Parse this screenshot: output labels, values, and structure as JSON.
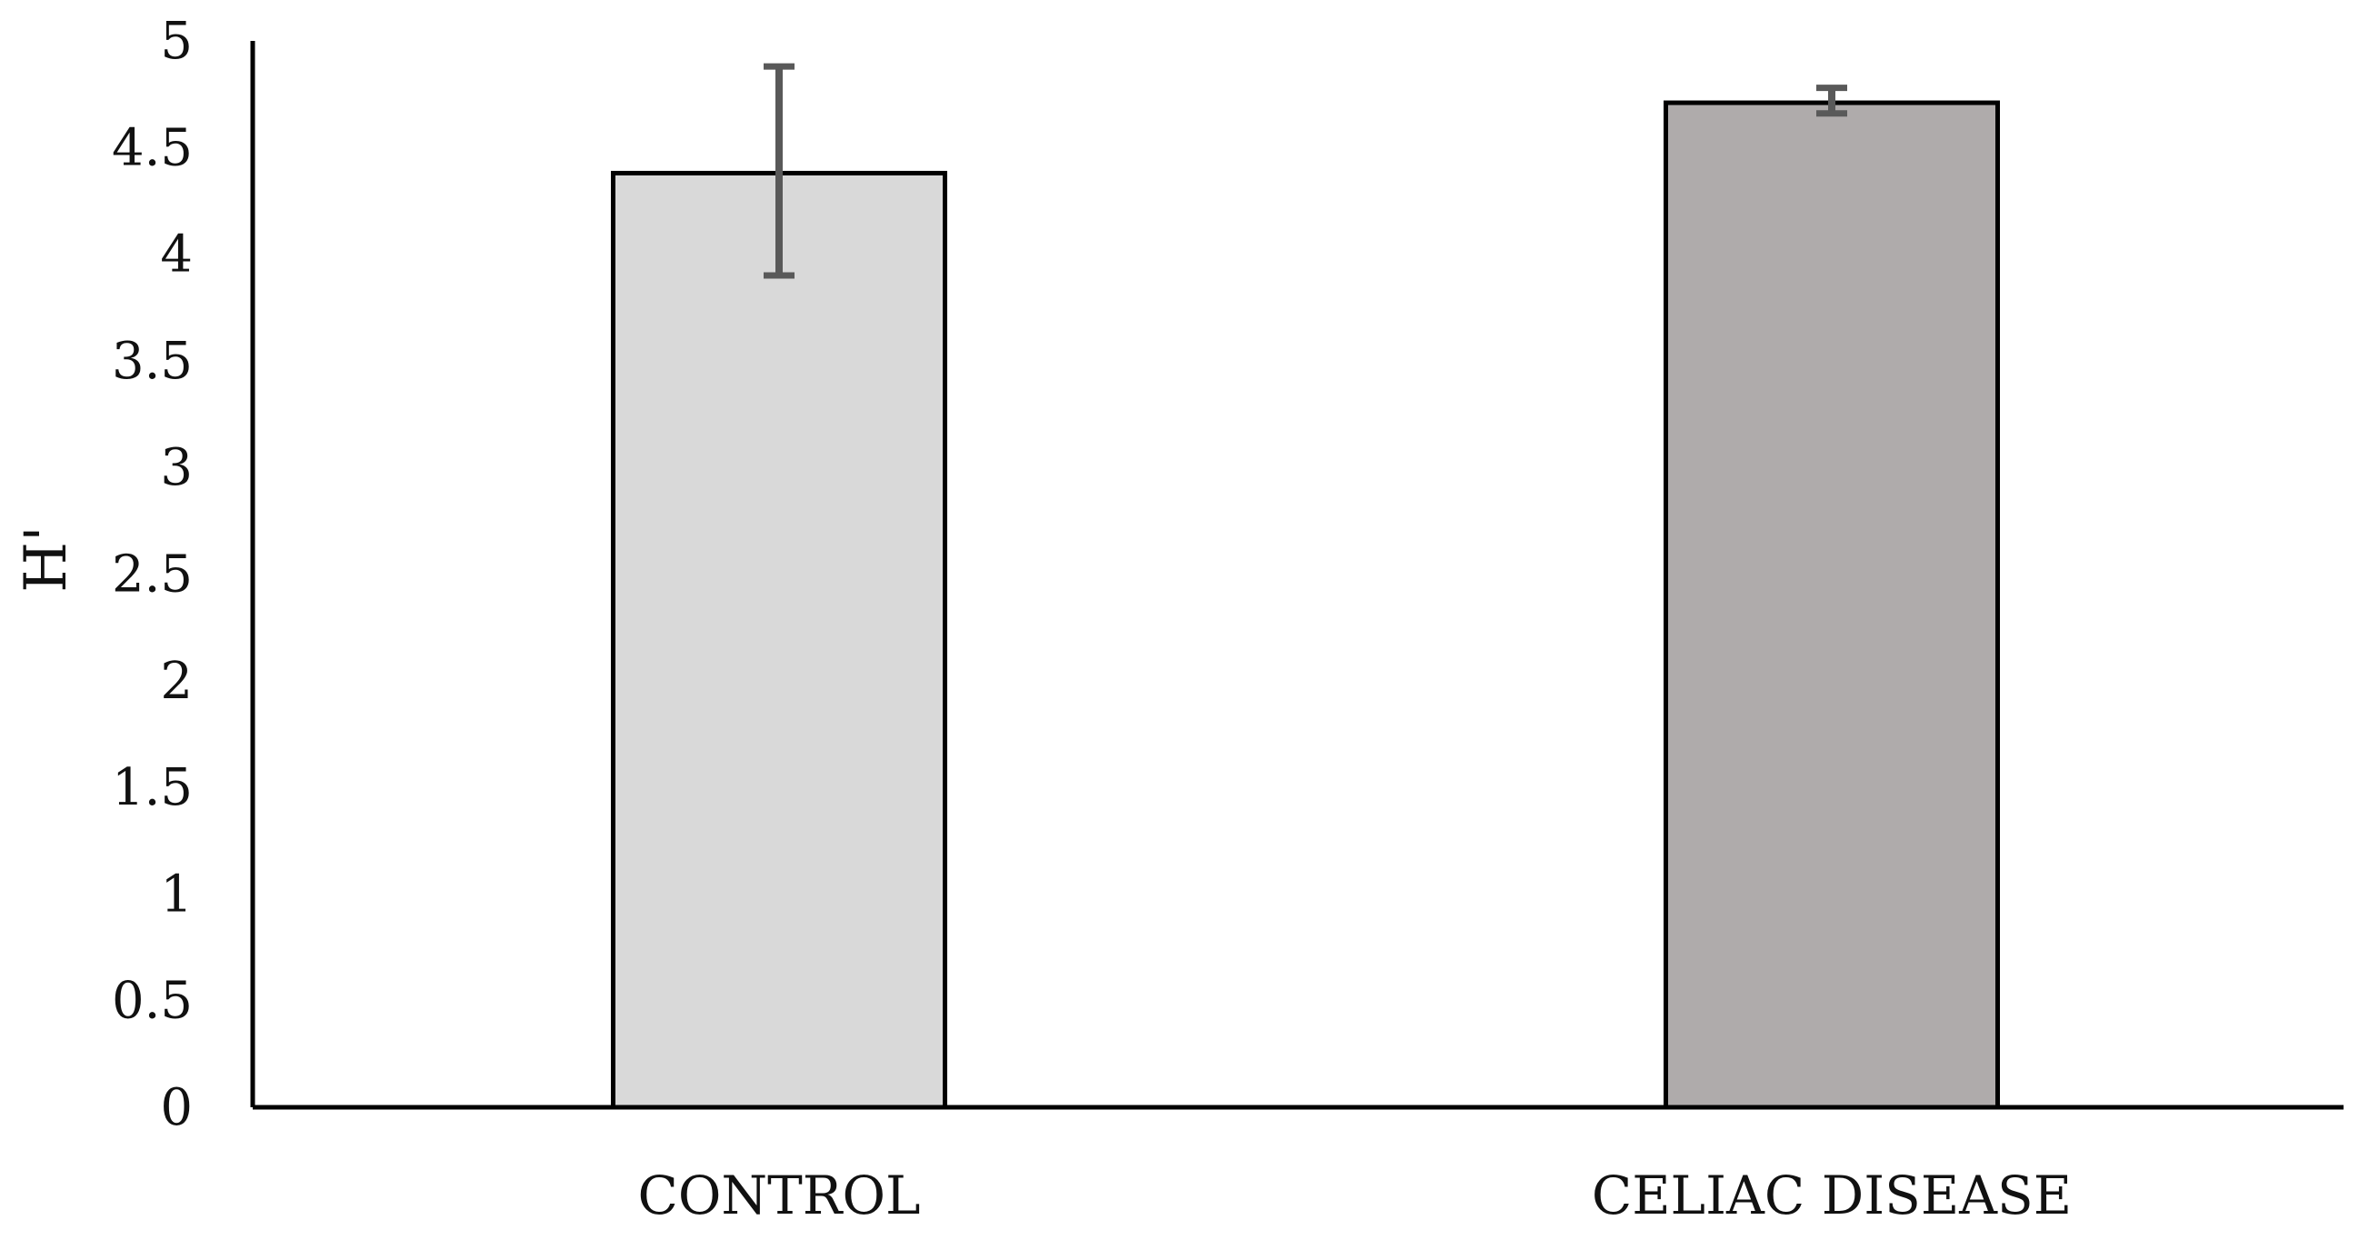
{
  "chart_data": {
    "type": "bar",
    "title": "",
    "xlabel": "",
    "ylabel": "H'",
    "ylim": [
      0,
      5
    ],
    "yticks": [
      "0",
      "0.5",
      "1",
      "1.5",
      "2",
      "2.5",
      "3",
      "3.5",
      "4",
      "4.5",
      "5"
    ],
    "categories": [
      "CONTROL",
      "CELIAC DISEASE"
    ],
    "values": [
      4.38,
      4.71
    ],
    "error_low": [
      3.9,
      4.66
    ],
    "error_high": [
      4.88,
      4.78
    ],
    "bar_colors": [
      "#d9d9d9",
      "#afabab"
    ],
    "error_bar_color": "#595959",
    "grid": false,
    "legend": "none"
  }
}
